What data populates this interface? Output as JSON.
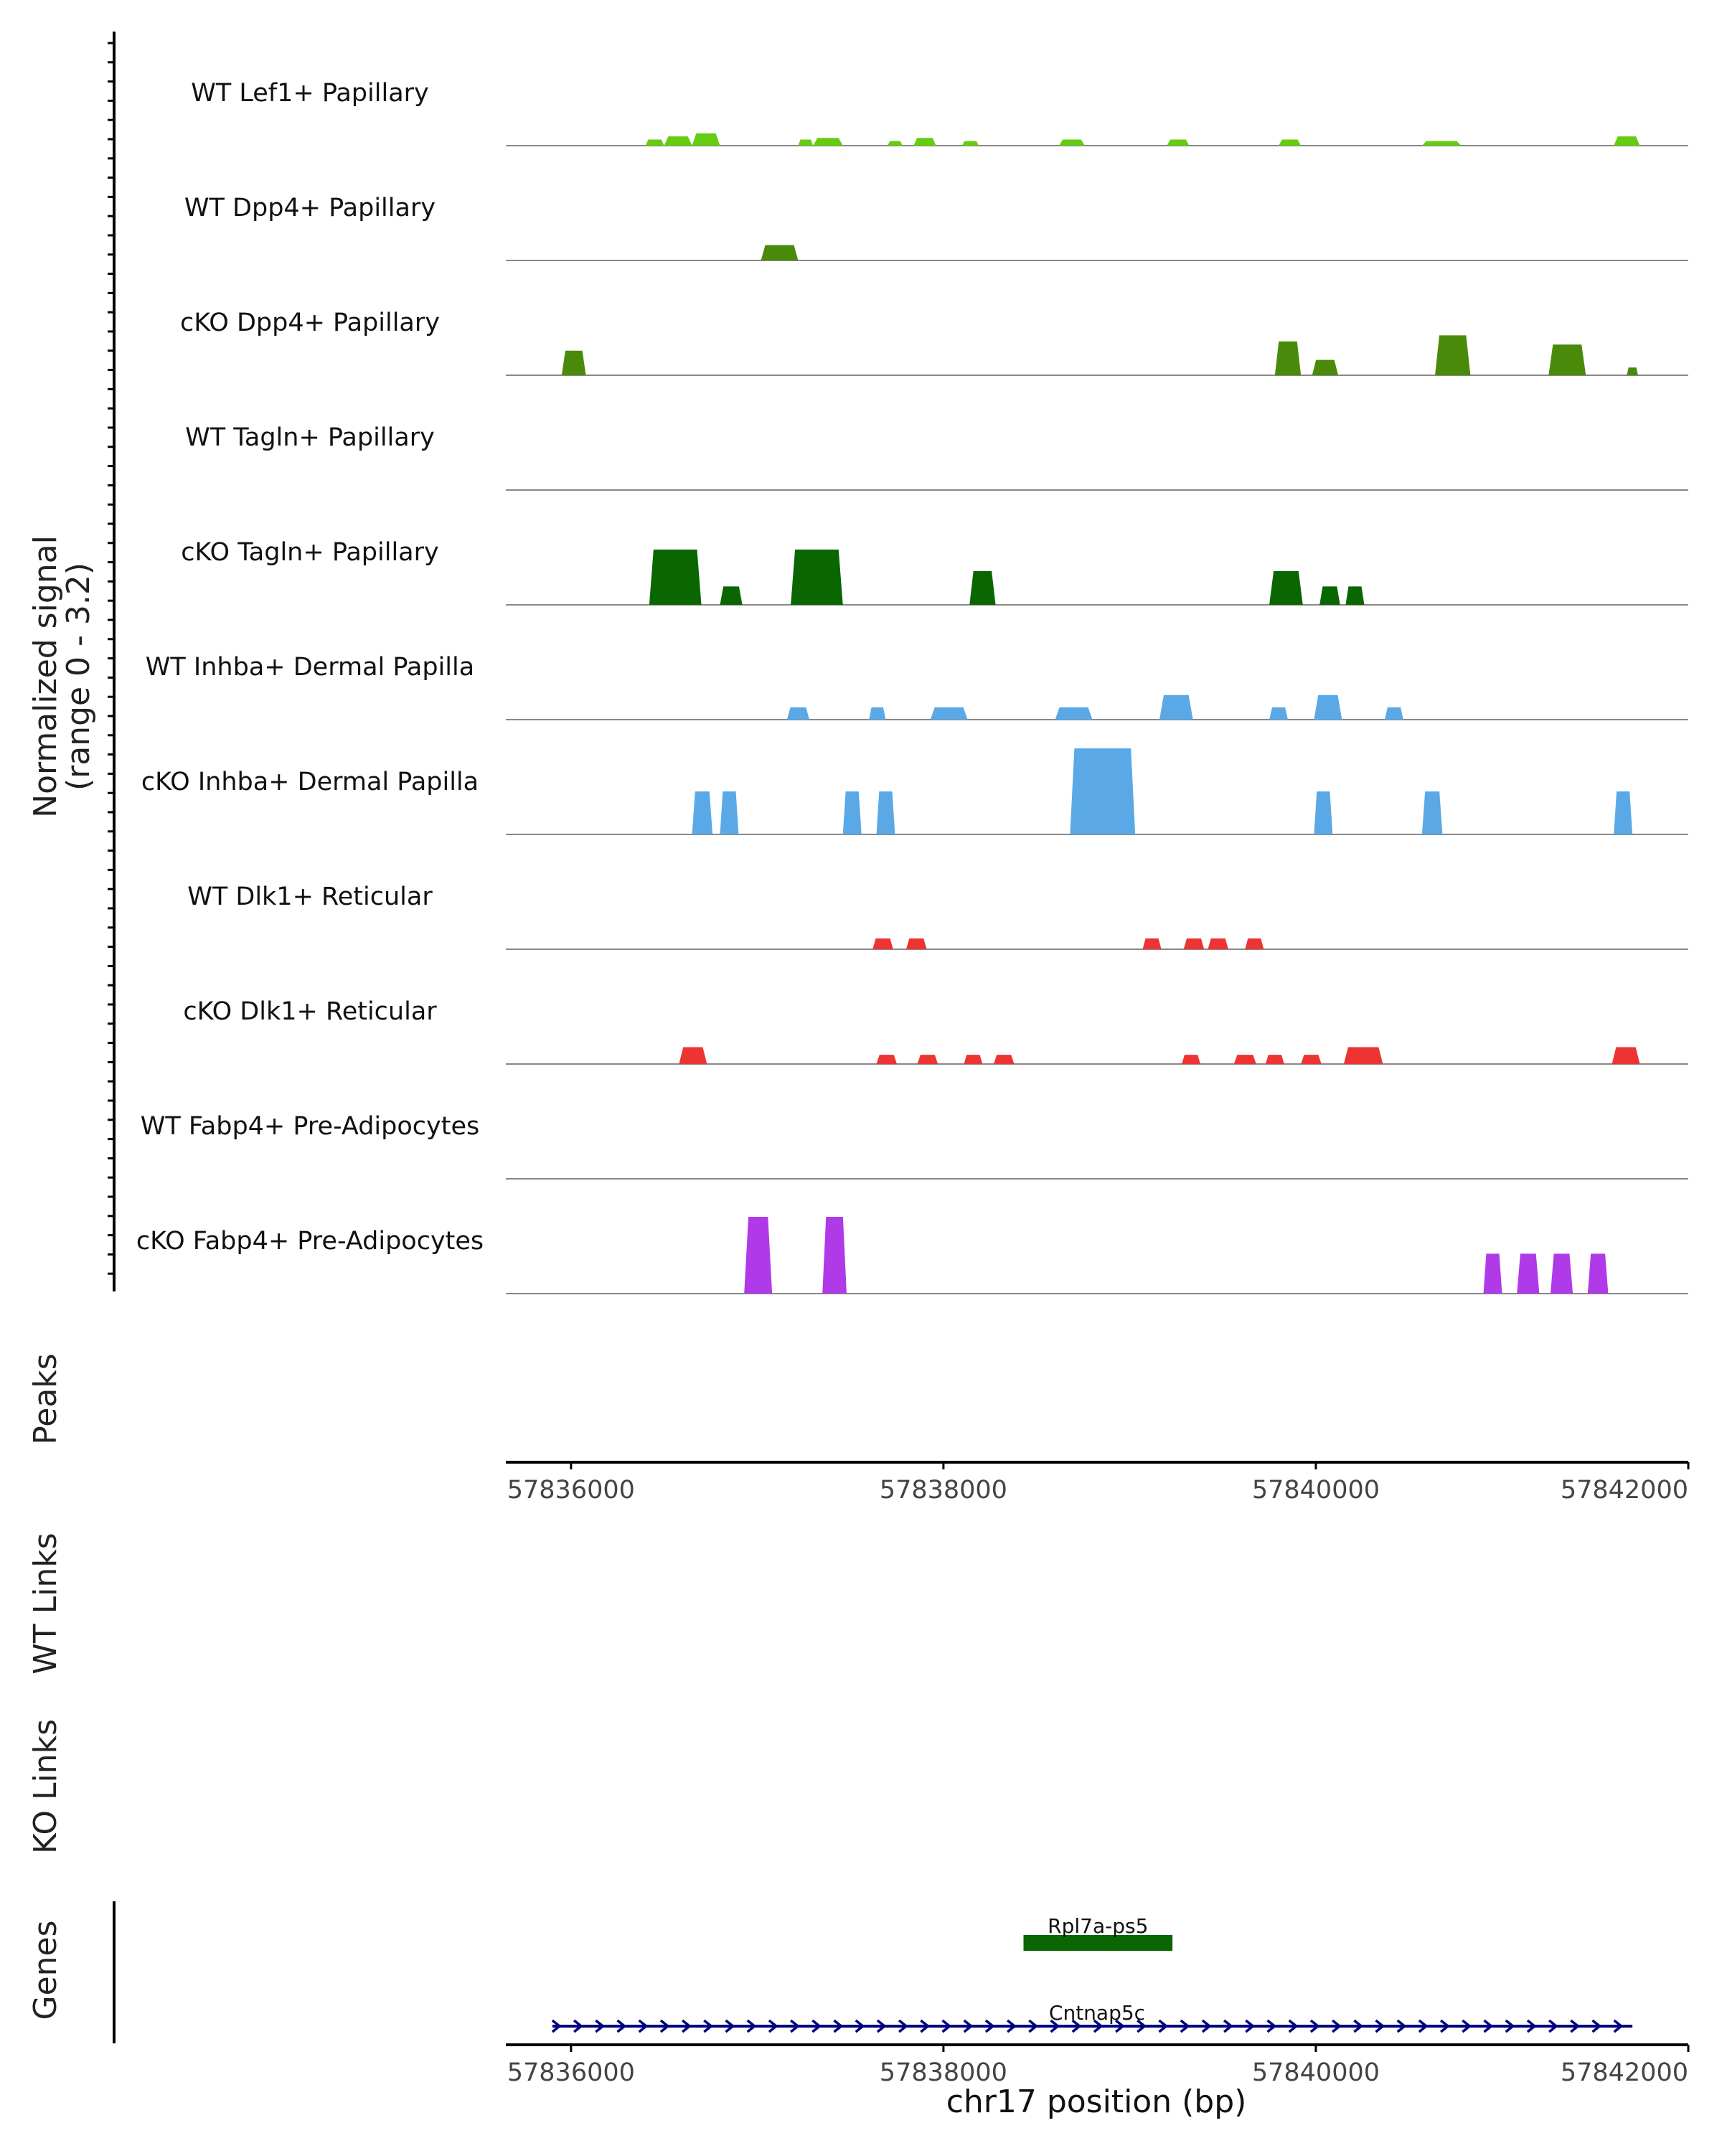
{
  "chart_data": {
    "type": "coverage",
    "region": {
      "chromosome": "chr17",
      "start": 57835650,
      "end": 57842000
    },
    "yaxis_label_line1": "Normalized signal",
    "yaxis_label_line2": "(range 0 - 3.2)",
    "ylim": [
      0,
      3.2
    ],
    "xlabel": "chr17 position (bp)",
    "xticks": [
      57836000,
      57838000,
      57840000,
      57842000
    ],
    "xtick_labels": [
      "57836000",
      "57838000",
      "57840000",
      "57842000"
    ],
    "tracks": [
      {
        "name": "WT Lef1+ Papillary",
        "color": "#66cc11",
        "peaks": [
          [
            57836400,
            57836500,
            0.2
          ],
          [
            57836500,
            57836650,
            0.3
          ],
          [
            57836650,
            57836800,
            0.4
          ],
          [
            57837220,
            57837300,
            0.2
          ],
          [
            57837300,
            57837460,
            0.25
          ],
          [
            57837700,
            57837780,
            0.15
          ],
          [
            57837840,
            57837960,
            0.25
          ],
          [
            57838100,
            57838190,
            0.15
          ],
          [
            57838620,
            57838760,
            0.2
          ],
          [
            57839200,
            57839320,
            0.2
          ],
          [
            57839800,
            57839920,
            0.2
          ],
          [
            57840570,
            57840780,
            0.15
          ],
          [
            57841600,
            57841740,
            0.3
          ]
        ]
      },
      {
        "name": "WT Dpp4+ Papillary",
        "color": "#4a8a0a",
        "peaks": [
          [
            57837020,
            57837220,
            0.5
          ]
        ]
      },
      {
        "name": "cKO Dpp4+ Papillary",
        "color": "#4a8a0a",
        "peaks": [
          [
            57835950,
            57836080,
            0.8
          ],
          [
            57839780,
            57839920,
            1.1
          ],
          [
            57839980,
            57840120,
            0.5
          ],
          [
            57840640,
            57840830,
            1.3
          ],
          [
            57841250,
            57841450,
            1.0
          ],
          [
            57841670,
            57841730,
            0.25
          ]
        ]
      },
      {
        "name": "WT Tagln+ Papillary",
        "color": "#0a6600",
        "peaks": []
      },
      {
        "name": "cKO Tagln+ Papillary",
        "color": "#0a6600",
        "peaks": [
          [
            57836420,
            57836700,
            1.8
          ],
          [
            57836800,
            57836920,
            0.6
          ],
          [
            57837180,
            57837460,
            1.8
          ],
          [
            57838140,
            57838280,
            1.1
          ],
          [
            57839750,
            57839930,
            1.1
          ],
          [
            57840020,
            57840130,
            0.6
          ],
          [
            57840160,
            57840260,
            0.6
          ]
        ]
      },
      {
        "name": "WT Inhba+ Dermal Papilla",
        "color": "#5aa9e6",
        "peaks": [
          [
            57837160,
            57837280,
            0.4
          ],
          [
            57837600,
            57837690,
            0.4
          ],
          [
            57837930,
            57838130,
            0.4
          ],
          [
            57838600,
            57838800,
            0.4
          ],
          [
            57839160,
            57839340,
            0.8
          ],
          [
            57839750,
            57839850,
            0.4
          ],
          [
            57839990,
            57840140,
            0.8
          ],
          [
            57840370,
            57840470,
            0.4
          ]
        ]
      },
      {
        "name": "cKO Inhba+ Dermal Papilla",
        "color": "#5aa9e6",
        "peaks": [
          [
            57836650,
            57836760,
            1.4
          ],
          [
            57836800,
            57836900,
            1.4
          ],
          [
            57837460,
            57837560,
            1.4
          ],
          [
            57837640,
            57837740,
            1.4
          ],
          [
            57838680,
            57839030,
            2.8
          ],
          [
            57839990,
            57840090,
            1.4
          ],
          [
            57840570,
            57840680,
            1.4
          ],
          [
            57841600,
            57841700,
            1.4
          ]
        ]
      },
      {
        "name": "WT Dlk1+ Reticular",
        "color": "#ee3333",
        "peaks": [
          [
            57837620,
            57837730,
            0.35
          ],
          [
            57837800,
            57837910,
            0.35
          ],
          [
            57839070,
            57839170,
            0.35
          ],
          [
            57839290,
            57839400,
            0.35
          ],
          [
            57839420,
            57839530,
            0.35
          ],
          [
            57839620,
            57839720,
            0.35
          ]
        ]
      },
      {
        "name": "cKO Dlk1+ Reticular",
        "color": "#ee3333",
        "peaks": [
          [
            57836580,
            57836730,
            0.55
          ],
          [
            57837640,
            57837750,
            0.3
          ],
          [
            57837860,
            57837970,
            0.3
          ],
          [
            57838110,
            57838210,
            0.3
          ],
          [
            57838270,
            57838380,
            0.3
          ],
          [
            57839280,
            57839380,
            0.3
          ],
          [
            57839560,
            57839680,
            0.3
          ],
          [
            57839730,
            57839830,
            0.3
          ],
          [
            57839920,
            57840030,
            0.3
          ],
          [
            57840150,
            57840360,
            0.55
          ],
          [
            57841590,
            57841740,
            0.55
          ]
        ]
      },
      {
        "name": "WT Fabp4+ Pre-Adipocytes",
        "color": "#b03ae8",
        "peaks": []
      },
      {
        "name": "cKO Fabp4+ Pre-Adipocytes",
        "color": "#b03ae8",
        "peaks": [
          [
            57836930,
            57837080,
            2.5
          ],
          [
            57837350,
            57837480,
            2.5
          ],
          [
            57840900,
            57841000,
            1.3
          ],
          [
            57841080,
            57841200,
            1.3
          ],
          [
            57841260,
            57841380,
            1.3
          ],
          [
            57841460,
            57841570,
            1.3
          ]
        ]
      }
    ],
    "side_panels": [
      "Peaks",
      "WT Links",
      "KO Links",
      "Genes"
    ],
    "genes": [
      {
        "name": "Rpl7a-ps5",
        "start": 57838430,
        "end": 57839230,
        "color": "#0a6600",
        "strand": "+"
      },
      {
        "name": "Cntnap5c",
        "start": 57835900,
        "end": 57841700,
        "color": "#000080",
        "strand": "+"
      }
    ]
  }
}
